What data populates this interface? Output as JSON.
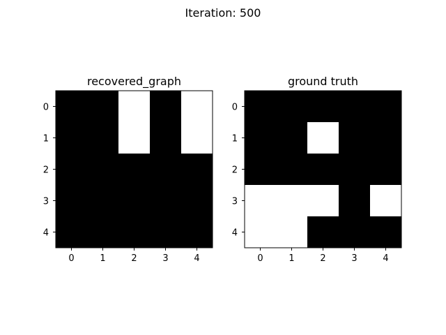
{
  "figure": {
    "suptitle": "Iteration: 500"
  },
  "chart_data": [
    {
      "type": "heatmap",
      "title": "recovered_graph",
      "x_ticks": [
        "0",
        "1",
        "2",
        "3",
        "4"
      ],
      "y_ticks": [
        "0",
        "1",
        "2",
        "3",
        "4"
      ],
      "colormap": {
        "0": "#000000",
        "1": "#ffffff"
      },
      "matrix": [
        [
          0,
          0,
          1,
          0,
          1
        ],
        [
          0,
          0,
          1,
          0,
          1
        ],
        [
          0,
          0,
          0,
          0,
          0
        ],
        [
          0,
          0,
          0,
          0,
          0
        ],
        [
          0,
          0,
          0,
          0,
          0
        ]
      ]
    },
    {
      "type": "heatmap",
      "title": "ground truth",
      "x_ticks": [
        "0",
        "1",
        "2",
        "3",
        "4"
      ],
      "y_ticks": [
        "0",
        "1",
        "2",
        "3",
        "4"
      ],
      "colormap": {
        "0": "#000000",
        "1": "#ffffff"
      },
      "matrix": [
        [
          0,
          0,
          0,
          0,
          0
        ],
        [
          0,
          0,
          1,
          0,
          0
        ],
        [
          0,
          0,
          0,
          0,
          0
        ],
        [
          1,
          1,
          1,
          0,
          1
        ],
        [
          1,
          1,
          0,
          0,
          0
        ]
      ]
    }
  ]
}
